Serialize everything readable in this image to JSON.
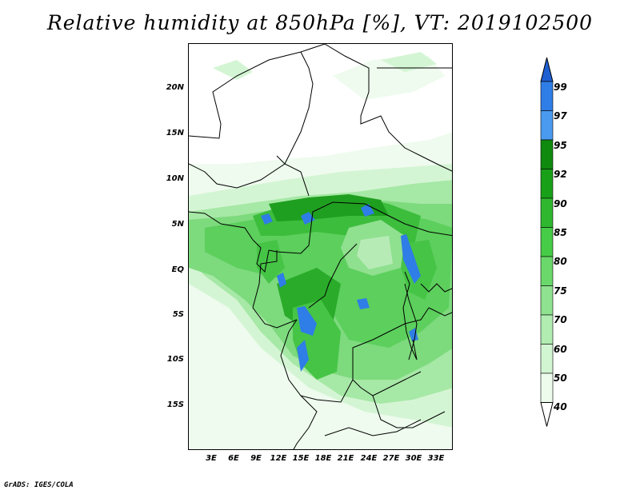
{
  "title": "Relative humidity at 850hPa [%], VT: 2019102500",
  "credit": "GrADS: IGES/COLA",
  "map": {
    "lat_ticks": [
      "20N",
      "15N",
      "10N",
      "5N",
      "EQ",
      "5S",
      "10S",
      "15S"
    ],
    "lon_ticks": [
      "3E",
      "6E",
      "9E",
      "12E",
      "15E",
      "18E",
      "21E",
      "24E",
      "27E",
      "30E",
      "33E"
    ]
  },
  "colorbar": {
    "levels": [
      "99",
      "97",
      "95",
      "92",
      "90",
      "85",
      "80",
      "75",
      "70",
      "60",
      "50",
      "40"
    ],
    "colors": [
      "#1e5fd2",
      "#2f7de6",
      "#4a9af0",
      "#0f8a0f",
      "#19a019",
      "#2fb82f",
      "#46cc46",
      "#6ad86a",
      "#8fe28f",
      "#b1ecb1",
      "#d2f5d2",
      "#ecfbec"
    ]
  }
}
